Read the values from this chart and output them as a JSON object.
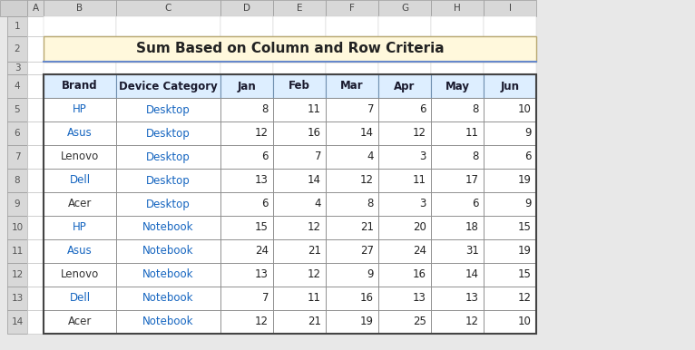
{
  "title": "Sum Based on Column and Row Criteria",
  "title_bg": "#FFF8DC",
  "title_color": "#333333",
  "col_letters": [
    "A",
    "B",
    "C",
    "D",
    "E",
    "F",
    "G",
    "H",
    "I"
  ],
  "row_numbers": [
    "1",
    "2",
    "3",
    "4",
    "5",
    "6",
    "7",
    "8",
    "9",
    "10",
    "11",
    "12",
    "13",
    "14"
  ],
  "header_row": [
    "Brand",
    "Device Category",
    "Jan",
    "Feb",
    "Mar",
    "Apr",
    "May",
    "Jun"
  ],
  "header_bg": "#DDEEFF",
  "header_text_color": "#1a1a2e",
  "data_rows": [
    [
      "HP",
      "Desktop",
      "8",
      "11",
      "7",
      "6",
      "8",
      "10"
    ],
    [
      "Asus",
      "Desktop",
      "12",
      "16",
      "14",
      "12",
      "11",
      "9"
    ],
    [
      "Lenovo",
      "Desktop",
      "6",
      "7",
      "4",
      "3",
      "8",
      "6"
    ],
    [
      "Dell",
      "Desktop",
      "13",
      "14",
      "12",
      "11",
      "17",
      "19"
    ],
    [
      "Acer",
      "Desktop",
      "6",
      "4",
      "8",
      "3",
      "6",
      "9"
    ],
    [
      "HP",
      "Notebook",
      "15",
      "12",
      "21",
      "20",
      "18",
      "15"
    ],
    [
      "Asus",
      "Notebook",
      "24",
      "21",
      "27",
      "24",
      "31",
      "19"
    ],
    [
      "Lenovo",
      "Notebook",
      "13",
      "12",
      "9",
      "16",
      "14",
      "15"
    ],
    [
      "Dell",
      "Notebook",
      "7",
      "11",
      "16",
      "13",
      "13",
      "12"
    ],
    [
      "Acer",
      "Notebook",
      "12",
      "21",
      "19",
      "25",
      "12",
      "10"
    ]
  ],
  "brand_text_colors": {
    "HP": "#1565C0",
    "Asus": "#1565C0",
    "Lenovo": "#333333",
    "Dell": "#1565C0",
    "Acer": "#333333"
  },
  "category_text_color": "#1565C0",
  "number_text_color": "#333333",
  "cell_bg_white": "#FFFFFF",
  "border_color": "#A0A0A0",
  "grid_header_color": "#B0B8C8",
  "row_num_bg": "#F0F0F0",
  "row_num_color": "#666666",
  "outer_border_color": "#555555"
}
